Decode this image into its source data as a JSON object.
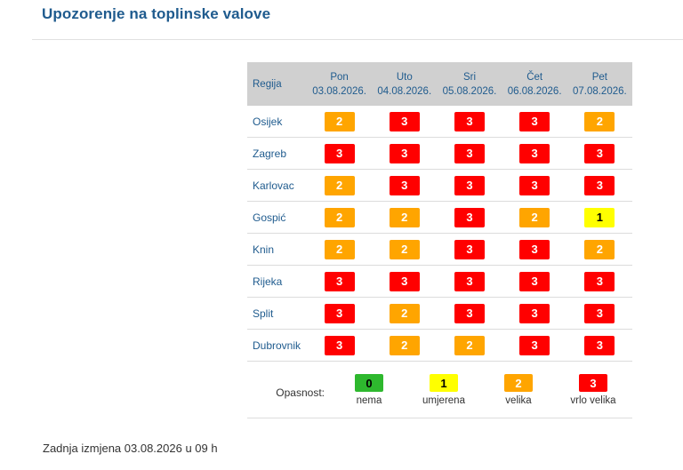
{
  "title": "Upozorenje na toplinske valove",
  "table": {
    "region_header": "Regija",
    "days": [
      {
        "day": "Pon",
        "date": "03.08.2026."
      },
      {
        "day": "Uto",
        "date": "04.08.2026."
      },
      {
        "day": "Sri",
        "date": "05.08.2026."
      },
      {
        "day": "Čet",
        "date": "06.08.2026."
      },
      {
        "day": "Pet",
        "date": "07.08.2026."
      }
    ],
    "rows": [
      {
        "region": "Osijek",
        "levels": [
          "2",
          "3",
          "3",
          "3",
          "2"
        ]
      },
      {
        "region": "Zagreb",
        "levels": [
          "3",
          "3",
          "3",
          "3",
          "3"
        ]
      },
      {
        "region": "Karlovac",
        "levels": [
          "2",
          "3",
          "3",
          "3",
          "3"
        ]
      },
      {
        "region": "Gospić",
        "levels": [
          "2",
          "2",
          "3",
          "2",
          "1"
        ]
      },
      {
        "region": "Knin",
        "levels": [
          "2",
          "2",
          "3",
          "3",
          "2"
        ]
      },
      {
        "region": "Rijeka",
        "levels": [
          "3",
          "3",
          "3",
          "3",
          "3"
        ]
      },
      {
        "region": "Split",
        "levels": [
          "3",
          "2",
          "3",
          "3",
          "3"
        ]
      },
      {
        "region": "Dubrovnik",
        "levels": [
          "3",
          "2",
          "2",
          "3",
          "3"
        ]
      }
    ]
  },
  "legend": {
    "label": "Opasnost:",
    "items": [
      {
        "level": "0",
        "text": "nema"
      },
      {
        "level": "1",
        "text": "umjerena"
      },
      {
        "level": "2",
        "text": "velika"
      },
      {
        "level": "3",
        "text": "vrlo velika"
      }
    ]
  },
  "level_colors": {
    "0": {
      "bg": "#2eb82e",
      "fg": "#000000"
    },
    "1": {
      "bg": "#ffff00",
      "fg": "#000000"
    },
    "2": {
      "bg": "#ffa500",
      "fg": "#ffffff"
    },
    "3": {
      "bg": "#ff0000",
      "fg": "#ffffff"
    }
  },
  "footer": "Zadnja izmjena 03.08.2026 u 09 h"
}
